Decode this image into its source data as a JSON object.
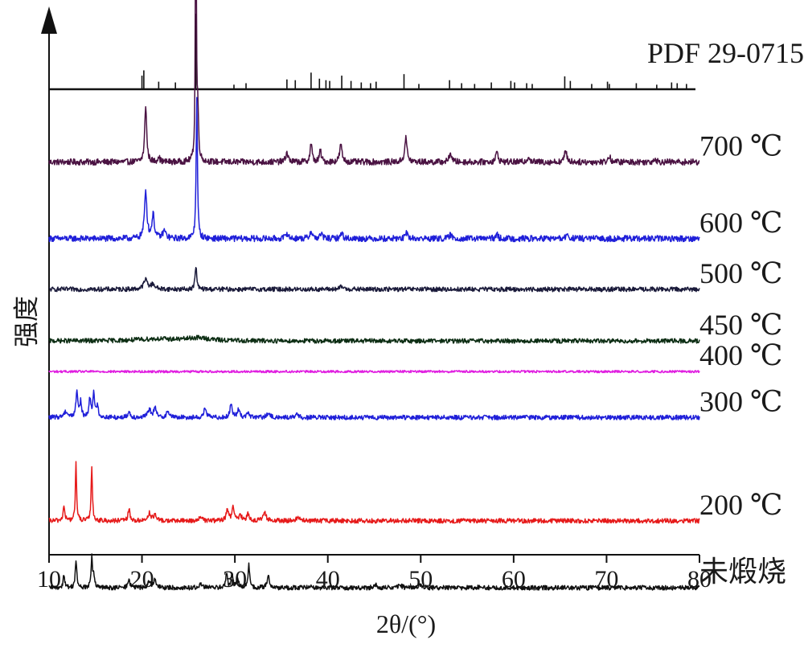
{
  "chart_data": {
    "type": "line",
    "xlabel": "2θ/(°)",
    "ylabel": "强度",
    "xlim": [
      10,
      80
    ],
    "x_ticks": [
      "10",
      "20",
      "30",
      "40",
      "50",
      "60",
      "70",
      "80"
    ],
    "reference": {
      "name": "PDF 29-0715",
      "peaks": [
        {
          "x": 20.0,
          "h": 0.18
        },
        {
          "x": 20.2,
          "h": 0.25
        },
        {
          "x": 21.8,
          "h": 0.1
        },
        {
          "x": 23.6,
          "h": 0.09
        },
        {
          "x": 25.8,
          "h": 1.0
        },
        {
          "x": 29.9,
          "h": 0.06
        },
        {
          "x": 31.2,
          "h": 0.08
        },
        {
          "x": 35.6,
          "h": 0.13
        },
        {
          "x": 36.5,
          "h": 0.12
        },
        {
          "x": 38.2,
          "h": 0.22
        },
        {
          "x": 39.1,
          "h": 0.14
        },
        {
          "x": 39.8,
          "h": 0.12
        },
        {
          "x": 40.2,
          "h": 0.11
        },
        {
          "x": 41.5,
          "h": 0.18
        },
        {
          "x": 42.5,
          "h": 0.11
        },
        {
          "x": 43.6,
          "h": 0.09
        },
        {
          "x": 44.6,
          "h": 0.08
        },
        {
          "x": 45.2,
          "h": 0.1
        },
        {
          "x": 48.2,
          "h": 0.2
        },
        {
          "x": 49.8,
          "h": 0.07
        },
        {
          "x": 53.1,
          "h": 0.12
        },
        {
          "x": 54.4,
          "h": 0.08
        },
        {
          "x": 55.8,
          "h": 0.07
        },
        {
          "x": 57.6,
          "h": 0.09
        },
        {
          "x": 59.7,
          "h": 0.11
        },
        {
          "x": 60.1,
          "h": 0.09
        },
        {
          "x": 61.4,
          "h": 0.08
        },
        {
          "x": 62.0,
          "h": 0.07
        },
        {
          "x": 65.5,
          "h": 0.17
        },
        {
          "x": 66.1,
          "h": 0.11
        },
        {
          "x": 68.4,
          "h": 0.07
        },
        {
          "x": 70.1,
          "h": 0.1
        },
        {
          "x": 70.3,
          "h": 0.07
        },
        {
          "x": 73.2,
          "h": 0.08
        },
        {
          "x": 75.4,
          "h": 0.06
        },
        {
          "x": 77.0,
          "h": 0.09
        },
        {
          "x": 77.6,
          "h": 0.08
        },
        {
          "x": 78.6,
          "h": 0.07
        }
      ]
    },
    "series": [
      {
        "name": "700 ℃",
        "color": "#4a1242",
        "baseline": 0.255,
        "noise": 0.004,
        "peaks": [
          [
            20.4,
            0.06,
            0.12
          ],
          [
            21.8,
            0.006,
            0.12
          ],
          [
            25.8,
            0.305,
            0.06
          ],
          [
            26.0,
            0.05,
            0.1
          ],
          [
            35.6,
            0.01,
            0.15
          ],
          [
            38.2,
            0.02,
            0.12
          ],
          [
            39.2,
            0.012,
            0.12
          ],
          [
            41.4,
            0.018,
            0.15
          ],
          [
            48.4,
            0.025,
            0.15
          ],
          [
            53.2,
            0.01,
            0.15
          ],
          [
            58.2,
            0.01,
            0.15
          ],
          [
            61.6,
            0.006,
            0.15
          ],
          [
            65.6,
            0.012,
            0.15
          ],
          [
            70.3,
            0.006,
            0.15
          ],
          [
            75.2,
            0.004,
            0.15
          ]
        ]
      },
      {
        "name": "600 ℃",
        "color": "#1f1fd9",
        "baseline": 0.175,
        "noise": 0.004,
        "peaks": [
          [
            20.4,
            0.05,
            0.15
          ],
          [
            21.2,
            0.025,
            0.15
          ],
          [
            22.4,
            0.008,
            0.2
          ],
          [
            25.9,
            0.15,
            0.08
          ],
          [
            35.6,
            0.006,
            0.15
          ],
          [
            38.2,
            0.008,
            0.15
          ],
          [
            39.3,
            0.005,
            0.15
          ],
          [
            41.5,
            0.006,
            0.15
          ],
          [
            48.5,
            0.006,
            0.15
          ],
          [
            53.2,
            0.004,
            0.15
          ],
          [
            58.2,
            0.004,
            0.15
          ],
          [
            65.8,
            0.004,
            0.15
          ]
        ]
      },
      {
        "name": "500 ℃",
        "color": "#1a1a3a",
        "baseline": 0.122,
        "noise": 0.003,
        "peaks": [
          [
            20.4,
            0.01,
            0.25
          ],
          [
            21.2,
            0.005,
            0.25
          ],
          [
            25.8,
            0.025,
            0.1
          ],
          [
            41.5,
            0.003,
            0.2
          ]
        ]
      },
      {
        "name": "450 ℃",
        "color": "#0d2e14",
        "baseline": 0.068,
        "noise": 0.003,
        "peaks": [
          [
            21.5,
            0.002,
            2.5
          ],
          [
            26.0,
            0.003,
            1.5
          ]
        ]
      },
      {
        "name": "400 ℃",
        "color": "#e01ee0",
        "baseline": 0.036,
        "noise": 0.0015,
        "peaks": []
      },
      {
        "name": "300 ℃",
        "color": "#1f1fd9",
        "baseline": -0.012,
        "noise": 0.003,
        "peaks": [
          [
            11.8,
            0.006,
            0.25
          ],
          [
            13.0,
            0.028,
            0.12
          ],
          [
            13.4,
            0.016,
            0.1
          ],
          [
            14.4,
            0.02,
            0.12
          ],
          [
            14.8,
            0.026,
            0.1
          ],
          [
            15.2,
            0.012,
            0.12
          ],
          [
            18.6,
            0.006,
            0.15
          ],
          [
            20.8,
            0.008,
            0.2
          ],
          [
            21.4,
            0.01,
            0.15
          ],
          [
            22.8,
            0.006,
            0.2
          ],
          [
            26.8,
            0.01,
            0.15
          ],
          [
            29.6,
            0.014,
            0.15
          ],
          [
            30.4,
            0.008,
            0.15
          ],
          [
            31.4,
            0.005,
            0.15
          ],
          [
            33.6,
            0.004,
            0.2
          ],
          [
            36.6,
            0.003,
            0.2
          ]
        ]
      },
      {
        "name": "200 ℃",
        "color": "#e61a1a",
        "baseline": -0.12,
        "noise": 0.003,
        "peaks": [
          [
            11.6,
            0.014,
            0.12
          ],
          [
            12.9,
            0.06,
            0.08
          ],
          [
            14.6,
            0.058,
            0.08
          ],
          [
            18.6,
            0.012,
            0.12
          ],
          [
            20.8,
            0.008,
            0.2
          ],
          [
            21.4,
            0.006,
            0.15
          ],
          [
            26.3,
            0.005,
            0.15
          ],
          [
            29.2,
            0.012,
            0.15
          ],
          [
            29.8,
            0.016,
            0.12
          ],
          [
            30.6,
            0.006,
            0.15
          ],
          [
            31.4,
            0.008,
            0.15
          ],
          [
            33.2,
            0.008,
            0.2
          ],
          [
            36.8,
            0.004,
            0.2
          ]
        ]
      },
      {
        "name": "未煅烧",
        "color": "#111111",
        "baseline": -0.19,
        "noise": 0.003,
        "peaks": [
          [
            11.6,
            0.014,
            0.1
          ],
          [
            12.9,
            0.028,
            0.1
          ],
          [
            14.6,
            0.034,
            0.08
          ],
          [
            14.8,
            0.012,
            0.1
          ],
          [
            18.6,
            0.01,
            0.12
          ],
          [
            20.8,
            0.008,
            0.15
          ],
          [
            21.4,
            0.008,
            0.15
          ],
          [
            26.4,
            0.004,
            0.2
          ],
          [
            29.1,
            0.014,
            0.12
          ],
          [
            29.7,
            0.012,
            0.12
          ],
          [
            30.3,
            0.01,
            0.12
          ],
          [
            31.5,
            0.024,
            0.1
          ],
          [
            33.6,
            0.012,
            0.15
          ],
          [
            38.2,
            0.003,
            0.2
          ],
          [
            45.2,
            0.003,
            0.2
          ],
          [
            47.8,
            0.003,
            0.2
          ],
          [
            49.9,
            0.003,
            0.2
          ],
          [
            56.5,
            0.002,
            0.2
          ]
        ]
      }
    ]
  }
}
